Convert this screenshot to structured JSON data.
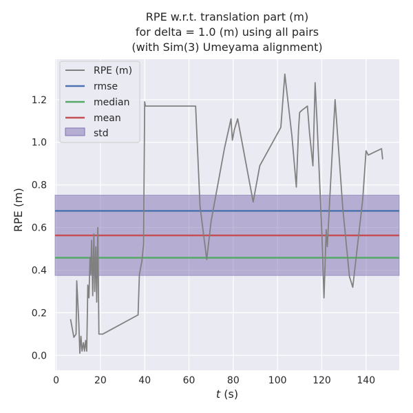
{
  "chart_data": {
    "type": "line",
    "title": [
      "RPE w.r.t. translation part (m)",
      "for delta = 1.0 (m) using all pairs",
      "(with Sim(3) Umeyama alignment)"
    ],
    "xlabel_italic": "t",
    "xlabel_rest": " (s)",
    "ylabel": "RPE (m)",
    "xlim": [
      -0.5,
      155
    ],
    "ylim": [
      -0.07,
      1.39
    ],
    "xticks": [
      0,
      20,
      40,
      60,
      80,
      100,
      120,
      140
    ],
    "yticks": [
      0.0,
      0.2,
      0.4,
      0.6,
      0.8,
      1.0,
      1.2
    ],
    "ytick_labels": [
      "0.0",
      "0.2",
      "0.4",
      "0.6",
      "0.8",
      "1.0",
      "1.2"
    ],
    "grid": true,
    "legend_position": "top-left",
    "colors": {
      "background": "#eaeaf2",
      "grid": "#ffffff",
      "rpe": "#808080",
      "rmse": "#4c72b0",
      "median": "#55a868",
      "mean": "#c44e52",
      "std": "#8172b2"
    },
    "series": [
      {
        "name": "RPE (m)",
        "x": [
          6.5,
          8.0,
          9.0,
          9.3,
          10.2,
          10.7,
          11.2,
          11.7,
          12.3,
          12.8,
          13.3,
          13.8,
          14.3,
          14.8,
          15.3,
          15.6,
          16.0,
          16.5,
          17.0,
          17.4,
          17.9,
          18.3,
          18.8,
          19.3,
          19.8,
          20.3,
          21.0,
          37.0,
          37.6,
          38.7,
          39.5,
          40.0,
          40.3,
          63.0,
          65.0,
          68.0,
          70.0,
          76.0,
          79.0,
          79.6,
          80.5,
          82.0,
          89.0,
          92.0,
          101.5,
          103.3,
          106.5,
          108.5,
          109.5,
          110.0,
          111.0,
          113.5,
          114.5,
          116.0,
          117.0,
          117.8,
          120.0,
          121.0,
          122.0,
          122.5,
          124.0,
          126.0,
          129.5,
          132.5,
          134.0,
          138.5,
          140.0,
          141.0,
          143.0,
          147.0,
          147.5
        ],
        "values": [
          0.17,
          0.085,
          0.1,
          0.35,
          0.16,
          0.01,
          0.09,
          0.02,
          0.06,
          0.02,
          0.07,
          0.02,
          0.33,
          0.27,
          0.46,
          0.38,
          0.54,
          0.28,
          0.57,
          0.3,
          0.51,
          0.25,
          0.6,
          0.1,
          0.1,
          0.1,
          0.1,
          0.19,
          0.38,
          0.44,
          0.52,
          1.19,
          1.17,
          1.17,
          0.7,
          0.45,
          0.63,
          0.97,
          1.11,
          1.01,
          1.06,
          1.11,
          0.72,
          0.89,
          1.07,
          1.32,
          1.03,
          0.79,
          1.06,
          1.14,
          1.15,
          1.17,
          1.04,
          0.89,
          1.28,
          1.11,
          0.58,
          0.27,
          0.59,
          0.51,
          0.81,
          1.2,
          0.69,
          0.37,
          0.32,
          0.73,
          0.96,
          0.94,
          0.95,
          0.97,
          0.92
        ]
      }
    ],
    "stats": {
      "rmse": {
        "name": "rmse",
        "value": 0.678
      },
      "median": {
        "name": "median",
        "value": 0.458
      },
      "mean": {
        "name": "mean",
        "value": 0.563
      },
      "std": {
        "name": "std",
        "low": 0.375,
        "high": 0.752
      }
    }
  }
}
